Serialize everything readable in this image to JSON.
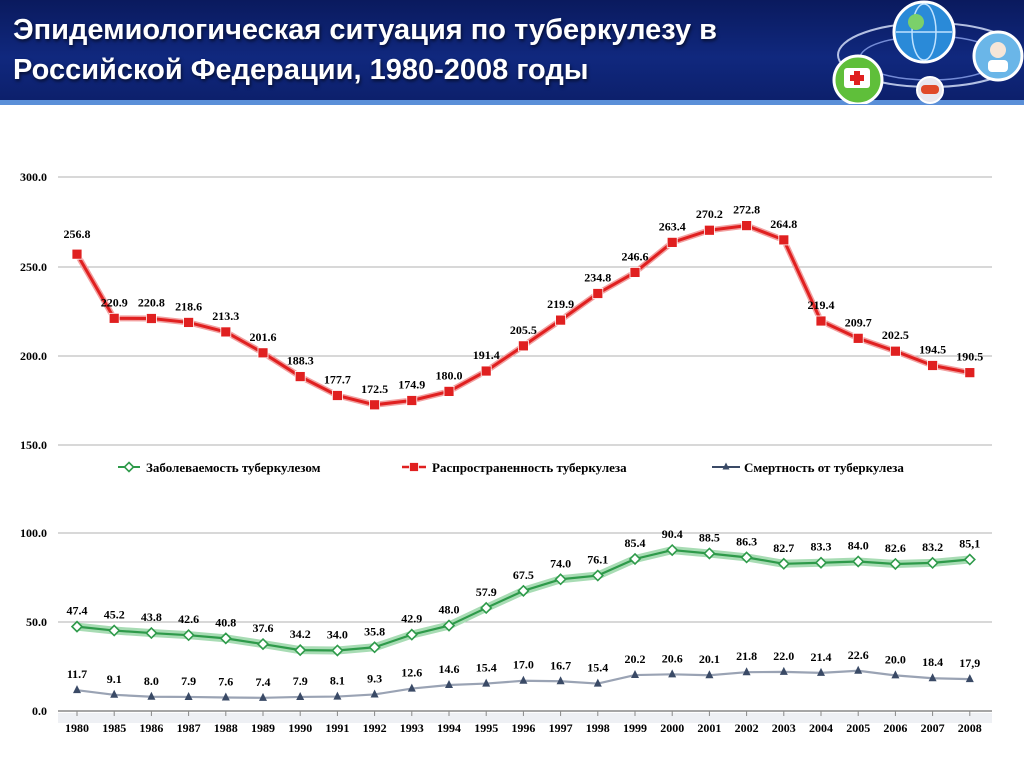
{
  "slide": {
    "title": "Эпидемиологическая ситуация по туберкулезу в Российской Федерации, 1980-2008 годы"
  },
  "chart_data": {
    "type": "line",
    "title": "",
    "xlabel": "",
    "ylabel": "",
    "categories": [
      "1980",
      "1985",
      "1986",
      "1987",
      "1988",
      "1989",
      "1990",
      "1991",
      "1992",
      "1993",
      "1994",
      "1995",
      "1996",
      "1997",
      "1998",
      "1999",
      "2000",
      "2001",
      "2002",
      "2003",
      "2004",
      "2005",
      "2006",
      "2007",
      "2008"
    ],
    "panels": [
      {
        "ylim": [
          150,
          300
        ],
        "yticks": [
          "150.0",
          "200.0",
          "250.0",
          "300.0"
        ],
        "grid": true
      },
      {
        "ylim": [
          0,
          100
        ],
        "yticks": [
          "0.0",
          "50.0",
          "100.0"
        ],
        "grid": true
      }
    ],
    "legend_position": "between panels",
    "series": [
      {
        "name": "Заболеваемость туберкулезом",
        "color": "#2e9a4a",
        "marker": "diamond",
        "panel": 1,
        "values": [
          47.4,
          45.2,
          43.8,
          42.6,
          40.8,
          37.6,
          34.2,
          34.0,
          35.8,
          42.9,
          48.0,
          57.9,
          67.5,
          74.0,
          76.1,
          85.4,
          90.4,
          88.5,
          86.3,
          82.7,
          83.3,
          84.0,
          82.6,
          83.2,
          85.1
        ],
        "labels": [
          "47.4",
          "45.2",
          "43.8",
          "42.6",
          "40.8",
          "37.6",
          "34.2",
          "34.0",
          "35.8",
          "42.9",
          "48.0",
          "57.9",
          "67.5",
          "74.0",
          "76.1",
          "85.4",
          "90.4",
          "88.5",
          "86.3",
          "82.7",
          "83.3",
          "84.0",
          "82.6",
          "83.2",
          "85,1"
        ]
      },
      {
        "name": "Распространенность туберкулеза",
        "color": "#e02020",
        "marker": "square",
        "panel": 0,
        "values": [
          256.8,
          220.9,
          220.8,
          218.6,
          213.3,
          201.6,
          188.3,
          177.7,
          172.5,
          174.9,
          180.0,
          191.4,
          205.5,
          219.9,
          234.8,
          246.6,
          263.4,
          270.2,
          272.8,
          264.8,
          219.4,
          209.7,
          202.5,
          194.5,
          190.5
        ],
        "labels": [
          "256.8",
          "220.9",
          "220.8",
          "218.6",
          "213.3",
          "201.6",
          "188.3",
          "177.7",
          "172.5",
          "174.9",
          "180.0",
          "191.4",
          "205.5",
          "219.9",
          "234.8",
          "246.6",
          "263.4",
          "270.2",
          "272.8",
          "264.8",
          "219.4",
          "209.7",
          "202.5",
          "194.5",
          "190.5"
        ]
      },
      {
        "name": "Смертность от туберкулеза",
        "color": "#3a4a66",
        "marker": "triangle",
        "panel": 1,
        "values": [
          11.7,
          9.1,
          8.0,
          7.9,
          7.6,
          7.4,
          7.9,
          8.1,
          9.3,
          12.6,
          14.6,
          15.4,
          17.0,
          16.7,
          15.4,
          20.2,
          20.6,
          20.1,
          21.8,
          22.0,
          21.4,
          22.6,
          20.0,
          18.4,
          17.9
        ],
        "labels": [
          "11.7",
          "9.1",
          "8.0",
          "7.9",
          "7.6",
          "7.4",
          "7.9",
          "8.1",
          "9.3",
          "12.6",
          "14.6",
          "15.4",
          "17.0",
          "16.7",
          "15.4",
          "20.2",
          "20.6",
          "20.1",
          "21.8",
          "22.0",
          "21.4",
          "22.6",
          "20.0",
          "18.4",
          "17,9"
        ]
      }
    ]
  }
}
